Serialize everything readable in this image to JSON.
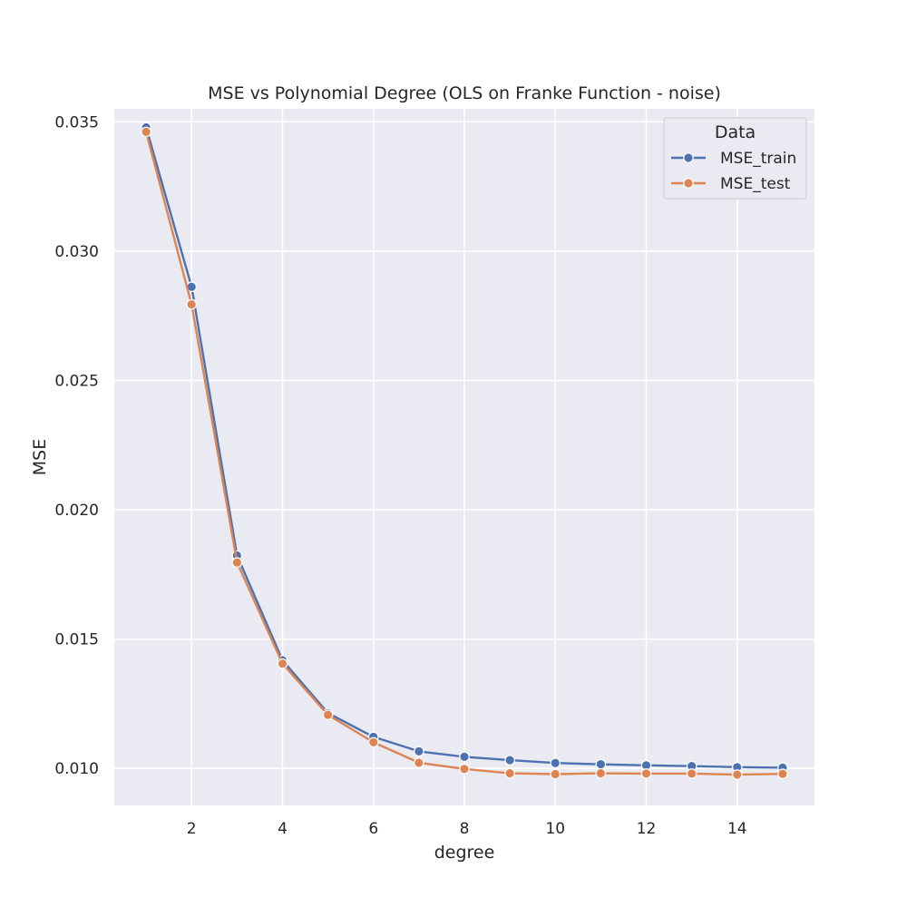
{
  "chart_data": {
    "type": "line",
    "title": "MSE vs Polynomial Degree (OLS on Franke Function - noise)",
    "xlabel": "degree",
    "ylabel": "MSE",
    "xlim": [
      0.3,
      15.7
    ],
    "ylim": [
      0.00857,
      0.0355
    ],
    "xticks": [
      2,
      4,
      6,
      8,
      10,
      12,
      14
    ],
    "xtick_labels": [
      "2",
      "4",
      "6",
      "8",
      "10",
      "12",
      "14"
    ],
    "yticks": [
      0.01,
      0.015,
      0.02,
      0.025,
      0.03,
      0.035
    ],
    "ytick_labels": [
      "0.010",
      "0.015",
      "0.020",
      "0.025",
      "0.030",
      "0.035"
    ],
    "grid": true,
    "legend": {
      "title": "Data",
      "placement": "top-right"
    },
    "x": [
      1,
      2,
      3,
      4,
      5,
      6,
      7,
      8,
      9,
      10,
      11,
      12,
      13,
      14,
      15
    ],
    "series": [
      {
        "name": "MSE_train",
        "color": "#4c72b0",
        "values": [
          0.03478,
          0.02862,
          0.01823,
          0.01418,
          0.01214,
          0.01122,
          0.01066,
          0.01045,
          0.01032,
          0.01021,
          0.01016,
          0.01012,
          0.01009,
          0.01005,
          0.01003
        ]
      },
      {
        "name": "MSE_test",
        "color": "#dd8452",
        "values": [
          0.03461,
          0.02794,
          0.01796,
          0.01405,
          0.01207,
          0.01101,
          0.01022,
          0.00998,
          0.00981,
          0.00978,
          0.00981,
          0.0098,
          0.0098,
          0.00976,
          0.00979
        ]
      }
    ],
    "colors": {
      "plot_background": "#eaeaf2",
      "grid": "#ffffff"
    }
  }
}
